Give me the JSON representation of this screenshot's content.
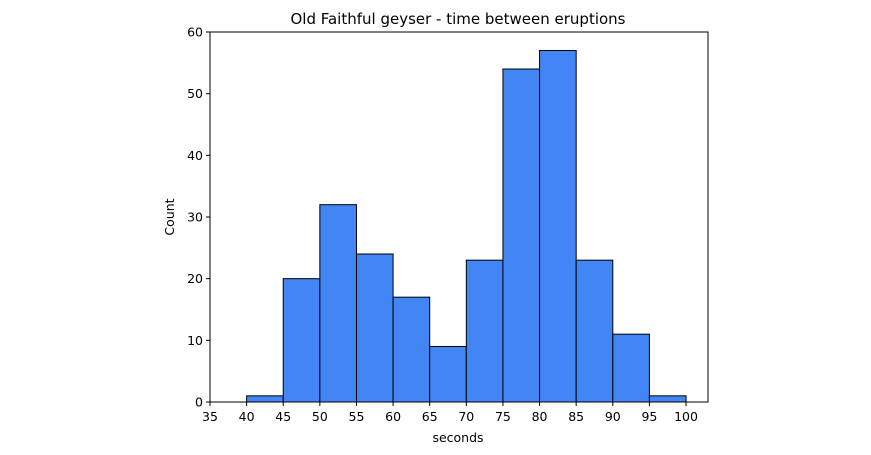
{
  "chart_data": {
    "type": "bar",
    "title": "Old Faithful geyser - time between eruptions",
    "xlabel": "seconds",
    "ylabel": "Count",
    "xlim": [
      35,
      103
    ],
    "ylim": [
      0,
      60
    ],
    "xticks": [
      35,
      40,
      45,
      50,
      55,
      60,
      65,
      70,
      75,
      80,
      85,
      90,
      95,
      100
    ],
    "yticks": [
      0,
      10,
      20,
      30,
      40,
      50,
      60
    ],
    "bin_edges": [
      40,
      45,
      50,
      55,
      60,
      65,
      70,
      75,
      80,
      85,
      90,
      95,
      100
    ],
    "values": [
      1,
      20,
      32,
      24,
      17,
      9,
      23,
      54,
      57,
      23,
      11,
      1
    ],
    "bar_color": "#4285f4",
    "edge_color": "#000000",
    "grid": false
  }
}
